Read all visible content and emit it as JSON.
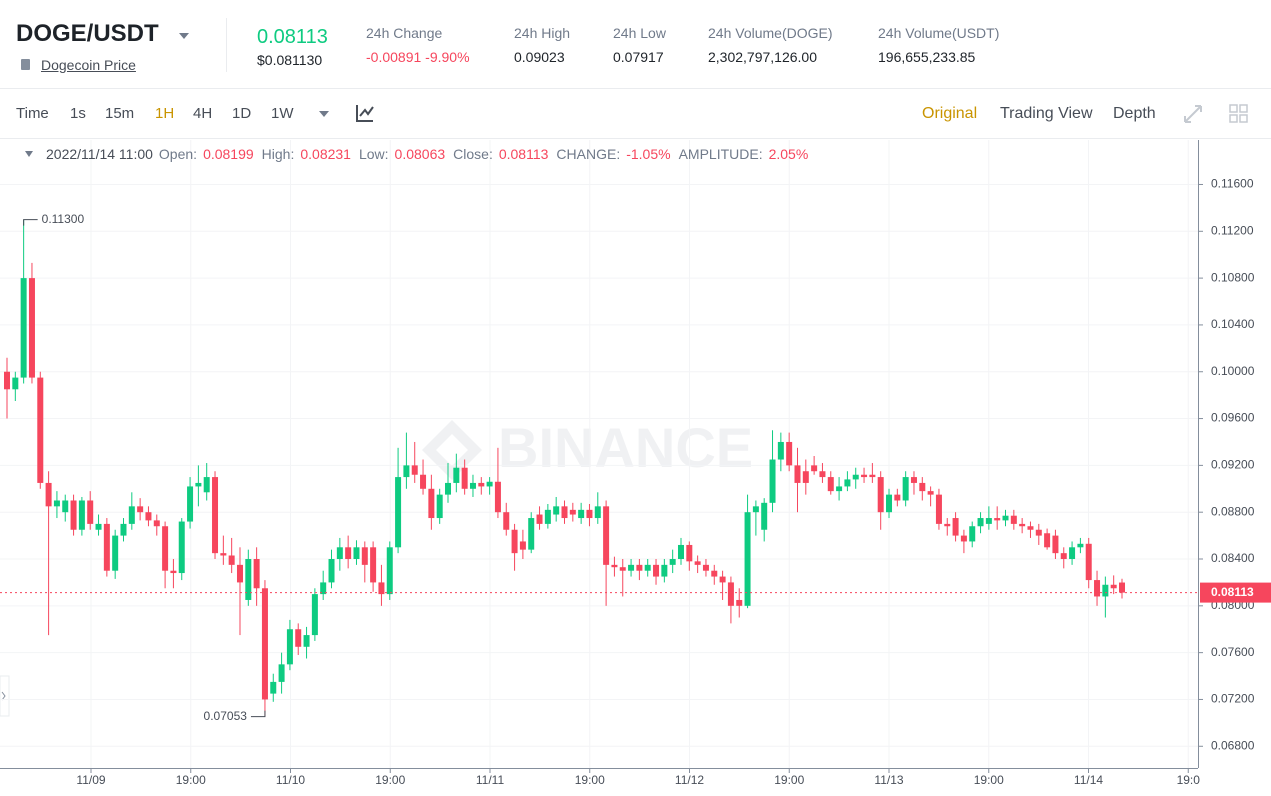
{
  "header": {
    "pair": "DOGE/USDT",
    "link": "Dogecoin Price",
    "price": "0.08113",
    "price_usd": "$0.081130",
    "stats": [
      {
        "label": "24h Change",
        "value": "-0.00891 -9.90%",
        "color": "#f6465d"
      },
      {
        "label": "24h High",
        "value": "0.09023"
      },
      {
        "label": "24h Low",
        "value": "0.07917"
      },
      {
        "label": "24h Volume(DOGE)",
        "value": "2,302,797,126.00"
      },
      {
        "label": "24h Volume(USDT)",
        "value": "196,655,233.85"
      }
    ]
  },
  "toolbar": {
    "intervals": [
      "Time",
      "1s",
      "15m",
      "1H",
      "4H",
      "1D",
      "1W"
    ],
    "active_interval": 3,
    "views": [
      "Original",
      "Trading View",
      "Depth"
    ],
    "active_view": 0
  },
  "ohlc_info": {
    "date": "2022/11/14 11:00",
    "items": [
      {
        "label": "Open:",
        "value": "0.08199"
      },
      {
        "label": "High:",
        "value": "0.08231"
      },
      {
        "label": "Low:",
        "value": "0.08063"
      },
      {
        "label": "Close:",
        "value": "0.08113"
      },
      {
        "label": "CHANGE:",
        "value": "-1.05%"
      },
      {
        "label": "AMPLITUDE:",
        "value": "2.05%"
      }
    ]
  },
  "chart_data": {
    "type": "candlestick",
    "watermark": "BINANCE",
    "up_color": "#0ecb81",
    "down_color": "#f6465d",
    "ylim": [
      0.0664,
      0.1198
    ],
    "yticks": [
      {
        "value": 0.116,
        "label": "0.11600"
      },
      {
        "value": 0.112,
        "label": "0.11200"
      },
      {
        "value": 0.108,
        "label": "0.10800"
      },
      {
        "value": 0.104,
        "label": "0.10400"
      },
      {
        "value": 0.1,
        "label": "0.10000"
      },
      {
        "value": 0.096,
        "label": "0.09600"
      },
      {
        "value": 0.092,
        "label": "0.09200"
      },
      {
        "value": 0.088,
        "label": "0.08800"
      },
      {
        "value": 0.084,
        "label": "0.08400"
      },
      {
        "value": 0.08,
        "label": "0.08000"
      },
      {
        "value": 0.076,
        "label": "0.07600"
      },
      {
        "value": 0.072,
        "label": "0.07200"
      },
      {
        "value": 0.068,
        "label": "0.06800"
      }
    ],
    "xticks": [
      "11/09",
      "19:00",
      "11/10",
      "19:00",
      "11/11",
      "19:00",
      "11/12",
      "19:00",
      "11/13",
      "19:00",
      "11/14",
      "19:0"
    ],
    "grid": true,
    "high_marker": {
      "value": 0.113,
      "label": "0.11300"
    },
    "low_marker": {
      "value": 0.07053,
      "label": "0.07053"
    },
    "last_price": 0.08113,
    "candles": [
      [
        0.1,
        0.1012,
        0.096,
        0.0985
      ],
      [
        0.0985,
        0.1,
        0.0975,
        0.0995
      ],
      [
        0.0995,
        0.113,
        0.099,
        0.108
      ],
      [
        0.108,
        0.1093,
        0.099,
        0.0995
      ],
      [
        0.0995,
        0.1,
        0.09,
        0.0905
      ],
      [
        0.0905,
        0.0915,
        0.0775,
        0.0885
      ],
      [
        0.0885,
        0.0898,
        0.0875,
        0.089
      ],
      [
        0.088,
        0.0895,
        0.0872,
        0.089
      ],
      [
        0.089,
        0.0895,
        0.086,
        0.0865
      ],
      [
        0.0865,
        0.0893,
        0.086,
        0.089
      ],
      [
        0.089,
        0.0898,
        0.0865,
        0.087
      ],
      [
        0.0865,
        0.0878,
        0.086,
        0.087
      ],
      [
        0.087,
        0.0875,
        0.0825,
        0.083
      ],
      [
        0.083,
        0.0865,
        0.0823,
        0.086
      ],
      [
        0.086,
        0.0875,
        0.0855,
        0.087
      ],
      [
        0.087,
        0.0897,
        0.0865,
        0.0885
      ],
      [
        0.0885,
        0.0892,
        0.0873,
        0.088
      ],
      [
        0.088,
        0.0885,
        0.0868,
        0.0873
      ],
      [
        0.0873,
        0.0878,
        0.086,
        0.0868
      ],
      [
        0.0868,
        0.0872,
        0.0815,
        0.083
      ],
      [
        0.083,
        0.084,
        0.0815,
        0.0828
      ],
      [
        0.0828,
        0.0875,
        0.0822,
        0.0872
      ],
      [
        0.0872,
        0.091,
        0.0866,
        0.0902
      ],
      [
        0.0902,
        0.092,
        0.0885,
        0.0905
      ],
      [
        0.0897,
        0.0922,
        0.089,
        0.091
      ],
      [
        0.091,
        0.0915,
        0.084,
        0.0845
      ],
      [
        0.0845,
        0.086,
        0.0835,
        0.0843
      ],
      [
        0.0843,
        0.0858,
        0.0828,
        0.0835
      ],
      [
        0.0835,
        0.085,
        0.0775,
        0.082
      ],
      [
        0.0805,
        0.0848,
        0.08,
        0.084
      ],
      [
        0.084,
        0.085,
        0.08,
        0.0815
      ],
      [
        0.0815,
        0.0822,
        0.07053,
        0.072
      ],
      [
        0.0725,
        0.0742,
        0.0718,
        0.0735
      ],
      [
        0.0735,
        0.076,
        0.0725,
        0.075
      ],
      [
        0.075,
        0.0788,
        0.0745,
        0.078
      ],
      [
        0.078,
        0.0785,
        0.0758,
        0.0765
      ],
      [
        0.0765,
        0.0782,
        0.0755,
        0.0775
      ],
      [
        0.0775,
        0.0815,
        0.077,
        0.081
      ],
      [
        0.081,
        0.083,
        0.0805,
        0.082
      ],
      [
        0.082,
        0.0848,
        0.0815,
        0.084
      ],
      [
        0.084,
        0.0858,
        0.083,
        0.085
      ],
      [
        0.085,
        0.086,
        0.0832,
        0.084
      ],
      [
        0.084,
        0.0856,
        0.0835,
        0.085
      ],
      [
        0.085,
        0.0855,
        0.082,
        0.0835
      ],
      [
        0.085,
        0.0855,
        0.0812,
        0.082
      ],
      [
        0.082,
        0.0835,
        0.08,
        0.081
      ],
      [
        0.081,
        0.0855,
        0.0805,
        0.085
      ],
      [
        0.085,
        0.0935,
        0.0845,
        0.091
      ],
      [
        0.091,
        0.0948,
        0.09,
        0.092
      ],
      [
        0.092,
        0.094,
        0.0905,
        0.0912
      ],
      [
        0.0912,
        0.0925,
        0.0895,
        0.09
      ],
      [
        0.09,
        0.0912,
        0.0865,
        0.0875
      ],
      [
        0.0875,
        0.09,
        0.087,
        0.0895
      ],
      [
        0.0895,
        0.0922,
        0.0888,
        0.0905
      ],
      [
        0.0905,
        0.093,
        0.0897,
        0.0918
      ],
      [
        0.0918,
        0.0925,
        0.0895,
        0.09
      ],
      [
        0.09,
        0.0912,
        0.0893,
        0.0905
      ],
      [
        0.0905,
        0.091,
        0.0895,
        0.0902
      ],
      [
        0.0902,
        0.091,
        0.0895,
        0.0906
      ],
      [
        0.0906,
        0.0935,
        0.0875,
        0.088
      ],
      [
        0.088,
        0.0888,
        0.086,
        0.0865
      ],
      [
        0.0865,
        0.087,
        0.083,
        0.0845
      ],
      [
        0.0855,
        0.0865,
        0.084,
        0.0848
      ],
      [
        0.0848,
        0.088,
        0.0845,
        0.0875
      ],
      [
        0.0878,
        0.0885,
        0.0865,
        0.087
      ],
      [
        0.087,
        0.0887,
        0.0866,
        0.0882
      ],
      [
        0.0878,
        0.0893,
        0.0872,
        0.0885
      ],
      [
        0.0885,
        0.089,
        0.087,
        0.0875
      ],
      [
        0.0882,
        0.0888,
        0.0872,
        0.0878
      ],
      [
        0.0875,
        0.0888,
        0.087,
        0.0882
      ],
      [
        0.0882,
        0.0887,
        0.0868,
        0.0875
      ],
      [
        0.0875,
        0.0897,
        0.087,
        0.0885
      ],
      [
        0.0885,
        0.089,
        0.08,
        0.0835
      ],
      [
        0.0835,
        0.0842,
        0.0825,
        0.0833
      ],
      [
        0.0833,
        0.084,
        0.0808,
        0.083
      ],
      [
        0.083,
        0.084,
        0.0825,
        0.0835
      ],
      [
        0.0835,
        0.084,
        0.0822,
        0.083
      ],
      [
        0.083,
        0.084,
        0.0825,
        0.0835
      ],
      [
        0.0835,
        0.084,
        0.0818,
        0.0825
      ],
      [
        0.0825,
        0.084,
        0.082,
        0.0835
      ],
      [
        0.0835,
        0.0848,
        0.0828,
        0.084
      ],
      [
        0.084,
        0.0858,
        0.0835,
        0.0852
      ],
      [
        0.0852,
        0.0855,
        0.083,
        0.0838
      ],
      [
        0.0838,
        0.0843,
        0.0828,
        0.0835
      ],
      [
        0.0835,
        0.084,
        0.0825,
        0.083
      ],
      [
        0.083,
        0.0835,
        0.0818,
        0.0825
      ],
      [
        0.0825,
        0.083,
        0.0805,
        0.082
      ],
      [
        0.082,
        0.0825,
        0.0785,
        0.08
      ],
      [
        0.0805,
        0.0815,
        0.079,
        0.08
      ],
      [
        0.08,
        0.0895,
        0.0798,
        0.088
      ],
      [
        0.088,
        0.089,
        0.086,
        0.0885
      ],
      [
        0.0865,
        0.0892,
        0.0855,
        0.0888
      ],
      [
        0.0888,
        0.095,
        0.088,
        0.0925
      ],
      [
        0.0925,
        0.0948,
        0.0915,
        0.094
      ],
      [
        0.094,
        0.0948,
        0.0915,
        0.092
      ],
      [
        0.092,
        0.0935,
        0.088,
        0.0905
      ],
      [
        0.0915,
        0.0925,
        0.0895,
        0.0905
      ],
      [
        0.092,
        0.0928,
        0.0912,
        0.0915
      ],
      [
        0.0915,
        0.0922,
        0.0905,
        0.091
      ],
      [
        0.091,
        0.0915,
        0.0895,
        0.0898
      ],
      [
        0.0898,
        0.091,
        0.089,
        0.0902
      ],
      [
        0.0902,
        0.0915,
        0.0898,
        0.0908
      ],
      [
        0.0908,
        0.0918,
        0.09,
        0.0912
      ],
      [
        0.0912,
        0.0918,
        0.0905,
        0.091
      ],
      [
        0.0912,
        0.0922,
        0.0905,
        0.091
      ],
      [
        0.091,
        0.0915,
        0.0865,
        0.088
      ],
      [
        0.088,
        0.09,
        0.0875,
        0.0895
      ],
      [
        0.0895,
        0.09,
        0.0885,
        0.089
      ],
      [
        0.089,
        0.0915,
        0.0885,
        0.091
      ],
      [
        0.091,
        0.0915,
        0.0895,
        0.0905
      ],
      [
        0.0905,
        0.091,
        0.089,
        0.0898
      ],
      [
        0.0898,
        0.0902,
        0.0885,
        0.0895
      ],
      [
        0.0895,
        0.09,
        0.0865,
        0.087
      ],
      [
        0.087,
        0.0875,
        0.086,
        0.0868
      ],
      [
        0.0875,
        0.088,
        0.0855,
        0.086
      ],
      [
        0.086,
        0.0865,
        0.0845,
        0.0855
      ],
      [
        0.0855,
        0.0872,
        0.085,
        0.0868
      ],
      [
        0.0868,
        0.088,
        0.0862,
        0.0875
      ],
      [
        0.087,
        0.0885,
        0.0865,
        0.0875
      ],
      [
        0.0875,
        0.0885,
        0.0865,
        0.0873
      ],
      [
        0.0873,
        0.0882,
        0.0868,
        0.0877
      ],
      [
        0.0877,
        0.0882,
        0.0865,
        0.087
      ],
      [
        0.087,
        0.0875,
        0.0862,
        0.0868
      ],
      [
        0.0868,
        0.0872,
        0.0858,
        0.0865
      ],
      [
        0.0865,
        0.087,
        0.0852,
        0.086
      ],
      [
        0.0862,
        0.0866,
        0.0848,
        0.085
      ],
      [
        0.086,
        0.0865,
        0.084,
        0.0845
      ],
      [
        0.0845,
        0.085,
        0.0832,
        0.084
      ],
      [
        0.084,
        0.0855,
        0.0835,
        0.085
      ],
      [
        0.085,
        0.0858,
        0.0845,
        0.0853
      ],
      [
        0.0853,
        0.0858,
        0.0815,
        0.0822
      ],
      [
        0.0822,
        0.083,
        0.08,
        0.0808
      ],
      [
        0.0808,
        0.0825,
        0.079,
        0.0818
      ],
      [
        0.0818,
        0.0826,
        0.081,
        0.0815
      ],
      [
        0.08199,
        0.08231,
        0.08063,
        0.08113
      ]
    ]
  }
}
